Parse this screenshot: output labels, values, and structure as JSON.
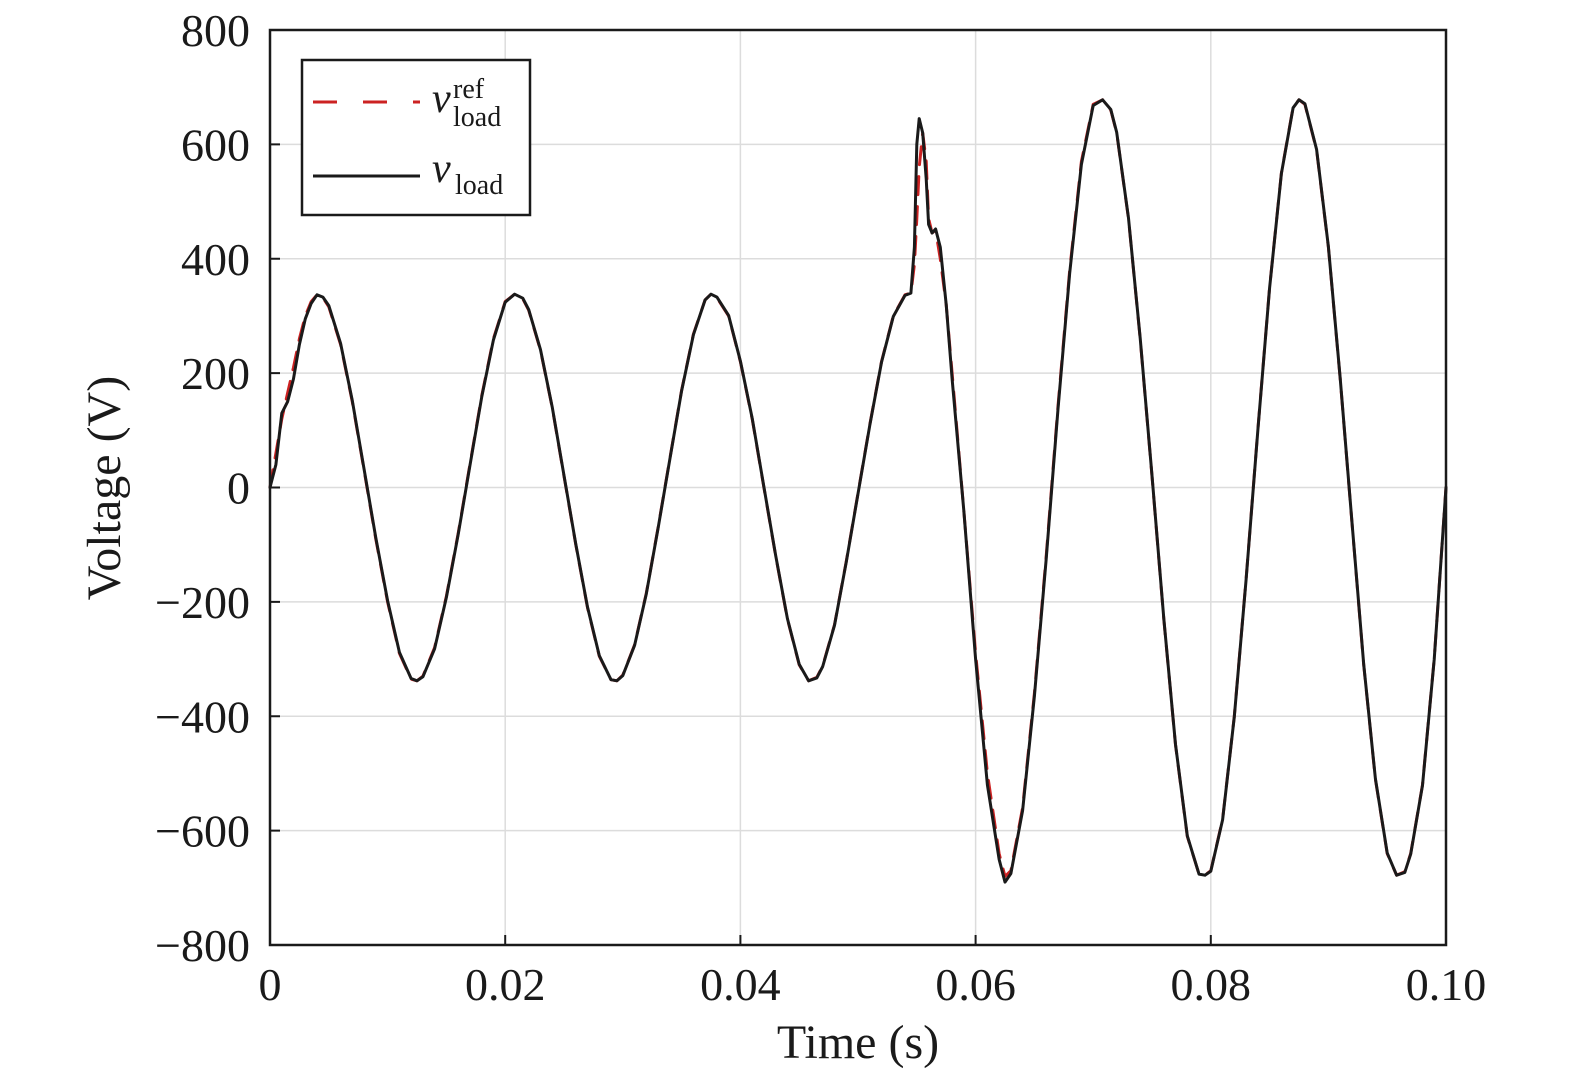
{
  "chart_data": {
    "type": "line",
    "xlabel": "Time (s)",
    "ylabel": "Voltage (V)",
    "xlim": [
      0,
      0.1
    ],
    "ylim": [
      -800,
      800
    ],
    "x_ticks": [
      0,
      0.02,
      0.04,
      0.06,
      0.08,
      0.1
    ],
    "x_tick_labels": [
      "0",
      "0.02",
      "0.04",
      "0.06",
      "0.08",
      "0.10"
    ],
    "y_ticks": [
      800,
      600,
      400,
      200,
      0,
      -200,
      -400,
      -600,
      -800
    ],
    "y_tick_labels": [
      "800",
      "600",
      "400",
      "200",
      "0",
      "−200",
      "−400",
      "−600",
      "−800"
    ],
    "grid": true,
    "legend_position": "top-left",
    "legend": [
      {
        "symbol": "v",
        "sup": "ref",
        "sub": "load",
        "color": "#cc2222",
        "style": "dashed"
      },
      {
        "symbol": "v",
        "sup": "",
        "sub": "load",
        "color": "#1a1a1a",
        "style": "solid"
      }
    ],
    "series": [
      {
        "color": "#cc2222",
        "style": "dashed",
        "x": [
          0,
          0.0005,
          0.001,
          0.0015,
          0.002,
          0.0025,
          0.003,
          0.0035,
          0.004,
          0.0045,
          0.005,
          0.006,
          0.007,
          0.008,
          0.009,
          0.01,
          0.011,
          0.012,
          0.0125,
          0.013,
          0.014,
          0.015,
          0.016,
          0.017,
          0.018,
          0.019,
          0.02,
          0.0208,
          0.0215,
          0.022,
          0.023,
          0.024,
          0.025,
          0.026,
          0.027,
          0.028,
          0.029,
          0.0295,
          0.03,
          0.031,
          0.032,
          0.033,
          0.034,
          0.035,
          0.036,
          0.037,
          0.0375,
          0.038,
          0.039,
          0.04,
          0.041,
          0.042,
          0.043,
          0.044,
          0.045,
          0.0458,
          0.0465,
          0.047,
          0.048,
          0.049,
          0.05,
          0.051,
          0.052,
          0.053,
          0.054,
          0.0545,
          0.0548,
          0.055,
          0.0552,
          0.0555,
          0.0558,
          0.056,
          0.0563,
          0.0566,
          0.057,
          0.0575,
          0.058,
          0.059,
          0.06,
          0.061,
          0.062,
          0.0625,
          0.063,
          0.064,
          0.065,
          0.066,
          0.067,
          0.068,
          0.069,
          0.07,
          0.0708,
          0.0715,
          0.072,
          0.073,
          0.074,
          0.075,
          0.076,
          0.077,
          0.078,
          0.079,
          0.0795,
          0.08,
          0.081,
          0.082,
          0.083,
          0.084,
          0.085,
          0.086,
          0.087,
          0.0875,
          0.088,
          0.089,
          0.09,
          0.091,
          0.092,
          0.093,
          0.094,
          0.095,
          0.0958,
          0.0965,
          0.097,
          0.098,
          0.099,
          0.1
        ],
        "y": [
          0,
          60,
          120,
          165,
          210,
          260,
          300,
          325,
          337,
          332,
          316,
          250,
          150,
          30,
          -90,
          -200,
          -290,
          -335,
          -338,
          -330,
          -280,
          -190,
          -80,
          40,
          160,
          260,
          325,
          338,
          330,
          310,
          240,
          140,
          20,
          -100,
          -210,
          -295,
          -336,
          -338,
          -328,
          -275,
          -185,
          -70,
          50,
          170,
          268,
          328,
          338,
          332,
          300,
          220,
          120,
          0,
          -120,
          -230,
          -310,
          -338,
          -332,
          -312,
          -240,
          -130,
          -10,
          110,
          220,
          300,
          337,
          340,
          390,
          470,
          560,
          620,
          570,
          470,
          445,
          450,
          400,
          320,
          200,
          -40,
          -290,
          -500,
          -640,
          -680,
          -670,
          -560,
          -360,
          -120,
          140,
          380,
          570,
          670,
          678,
          660,
          620,
          470,
          260,
          20,
          -230,
          -450,
          -610,
          -676,
          -678,
          -670,
          -580,
          -400,
          -160,
          100,
          350,
          550,
          665,
          678,
          670,
          590,
          420,
          190,
          -60,
          -310,
          -510,
          -640,
          -678,
          -672,
          -640,
          -520,
          -300,
          0
        ]
      },
      {
        "color": "#1a1a1a",
        "style": "solid",
        "x": [
          0,
          0.0005,
          0.001,
          0.0015,
          0.002,
          0.0025,
          0.003,
          0.0035,
          0.004,
          0.0045,
          0.005,
          0.006,
          0.007,
          0.008,
          0.009,
          0.01,
          0.011,
          0.012,
          0.0125,
          0.013,
          0.014,
          0.015,
          0.016,
          0.017,
          0.018,
          0.019,
          0.02,
          0.0208,
          0.0215,
          0.022,
          0.023,
          0.024,
          0.025,
          0.026,
          0.027,
          0.028,
          0.029,
          0.0295,
          0.03,
          0.031,
          0.032,
          0.033,
          0.034,
          0.035,
          0.036,
          0.037,
          0.0375,
          0.038,
          0.039,
          0.04,
          0.041,
          0.042,
          0.043,
          0.044,
          0.045,
          0.0458,
          0.0465,
          0.047,
          0.048,
          0.049,
          0.05,
          0.051,
          0.052,
          0.053,
          0.054,
          0.0545,
          0.0548,
          0.055,
          0.0552,
          0.0555,
          0.0558,
          0.056,
          0.0563,
          0.0566,
          0.057,
          0.0575,
          0.058,
          0.059,
          0.06,
          0.061,
          0.062,
          0.0625,
          0.063,
          0.064,
          0.065,
          0.066,
          0.067,
          0.068,
          0.069,
          0.07,
          0.0708,
          0.0715,
          0.072,
          0.073,
          0.074,
          0.075,
          0.076,
          0.077,
          0.078,
          0.079,
          0.0795,
          0.08,
          0.081,
          0.082,
          0.083,
          0.084,
          0.085,
          0.086,
          0.087,
          0.0875,
          0.088,
          0.089,
          0.09,
          0.091,
          0.092,
          0.093,
          0.094,
          0.095,
          0.0958,
          0.0965,
          0.097,
          0.098,
          0.099,
          0.1
        ],
        "y": [
          0,
          40,
          130,
          150,
          190,
          250,
          295,
          322,
          337,
          333,
          318,
          252,
          152,
          32,
          -88,
          -198,
          -288,
          -334,
          -338,
          -331,
          -282,
          -192,
          -82,
          38,
          158,
          258,
          324,
          338,
          331,
          311,
          241,
          141,
          21,
          -99,
          -209,
          -294,
          -336,
          -338,
          -329,
          -276,
          -186,
          -71,
          49,
          169,
          267,
          328,
          338,
          333,
          301,
          221,
          121,
          1,
          -119,
          -229,
          -309,
          -338,
          -333,
          -313,
          -241,
          -131,
          -11,
          109,
          219,
          299,
          336,
          340,
          420,
          600,
          645,
          620,
          540,
          460,
          445,
          452,
          420,
          320,
          190,
          -40,
          -300,
          -520,
          -650,
          -690,
          -675,
          -565,
          -365,
          -125,
          135,
          375,
          565,
          668,
          678,
          661,
          621,
          471,
          261,
          21,
          -229,
          -449,
          -609,
          -676,
          -678,
          -671,
          -581,
          -401,
          -161,
          99,
          349,
          549,
          664,
          678,
          671,
          591,
          421,
          191,
          -59,
          -309,
          -509,
          -639,
          -678,
          -673,
          -641,
          -521,
          -301,
          0
        ]
      }
    ]
  }
}
